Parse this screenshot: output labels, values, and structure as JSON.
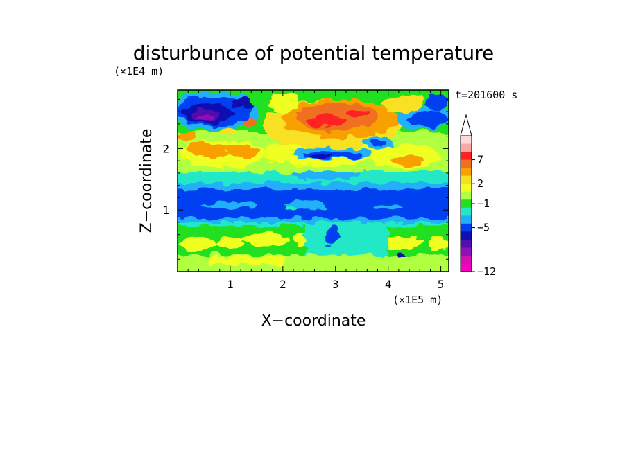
{
  "chart_data": {
    "type": "heatmap",
    "title": "disturbunce of potential temperature",
    "time_label": "t=201600 s",
    "xlabel": "X−coordinate",
    "ylabel": "Z−coordinate",
    "x_unit": "(×1E5 m)",
    "y_unit": "(×1E4 m)",
    "xlim": [
      0,
      5.15
    ],
    "ylim": [
      0,
      2.95
    ],
    "xticks": [
      "1",
      "2",
      "3",
      "4",
      "5"
    ],
    "yticks": [
      "1",
      "2"
    ],
    "colorbar": {
      "tick_labels": [
        "7",
        "2",
        "−1",
        "−5",
        "−12"
      ],
      "colors_top_to_bottom": [
        "#ffd8d8",
        "#f8a8a8",
        "#ff2020",
        "#f07020",
        "#f8a000",
        "#f8e020",
        "#f0ff20",
        "#b0ff40",
        "#20e020",
        "#20e8c8",
        "#20b0f8",
        "#0040f0",
        "#1010b0",
        "#5010b0",
        "#9010b8",
        "#d010b0",
        "#f800c0"
      ],
      "extend_arrow": "top"
    },
    "field_description_rows": [
      {
        "z_range": [
          2.35,
          2.95
        ],
        "x_range": [
          0,
          1.2
        ],
        "level": -5
      },
      {
        "z_range": [
          2.3,
          2.7
        ],
        "x_range": [
          2.2,
          3.8
        ],
        "level": 7
      },
      {
        "z_range": [
          1.85,
          2.0
        ],
        "x_range": [
          2.2,
          3.4
        ],
        "level": -5
      },
      {
        "z_range": [
          0.82,
          1.33
        ],
        "x_range": [
          0,
          5.15
        ],
        "level": -5
      },
      {
        "z_range": [
          0.2,
          0.6
        ],
        "x_range": [
          0,
          5.15
        ],
        "level": 2
      }
    ]
  }
}
